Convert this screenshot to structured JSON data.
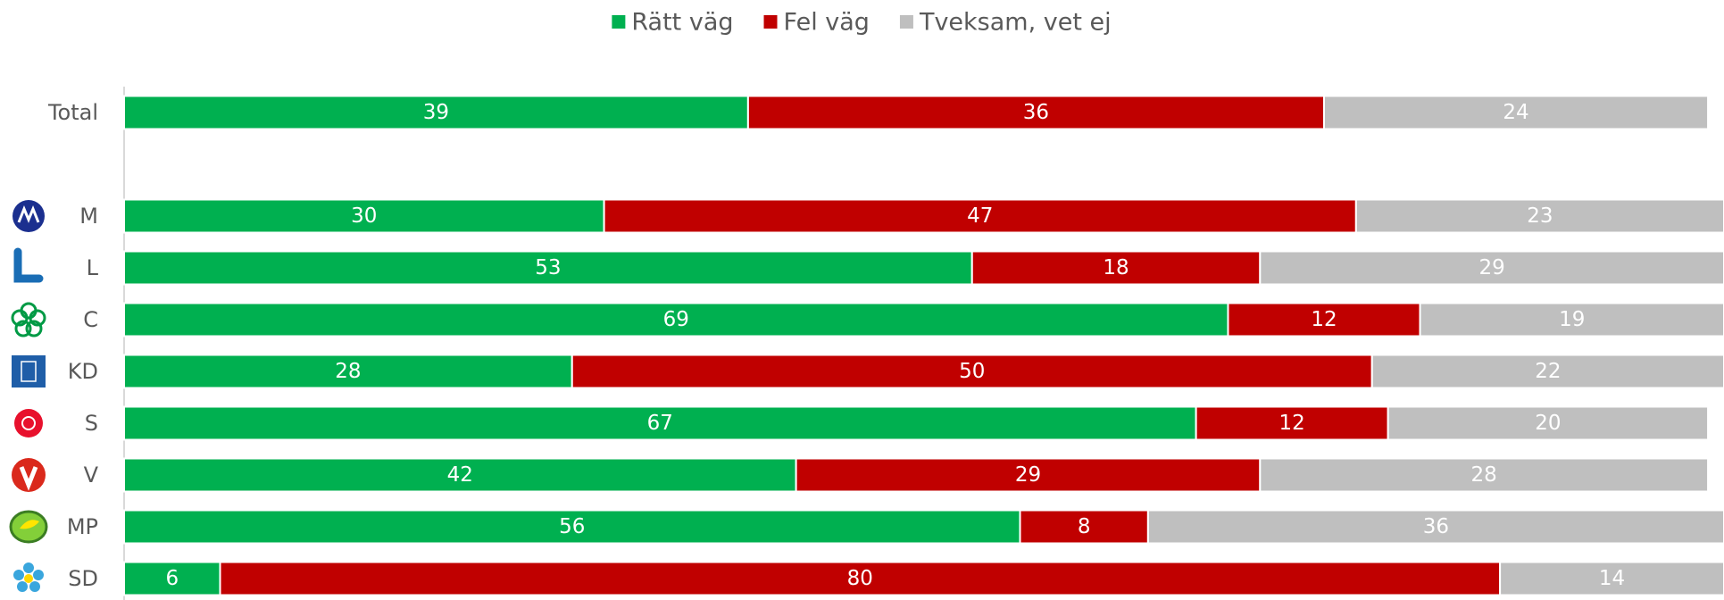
{
  "chart_data": {
    "type": "stacked-bar-horizontal",
    "categories": [
      "Total",
      "M",
      "L",
      "C",
      "KD",
      "S",
      "V",
      "MP",
      "SD"
    ],
    "series": [
      {
        "name": "Rätt väg",
        "color": "#00b050",
        "values": [
          39,
          30,
          53,
          69,
          28,
          67,
          42,
          56,
          6
        ]
      },
      {
        "name": "Fel väg",
        "color": "#c00000",
        "values": [
          36,
          47,
          18,
          12,
          50,
          12,
          29,
          8,
          80
        ]
      },
      {
        "name": "Tveksam, vet ej",
        "color": "#bfbfbf",
        "values": [
          24,
          23,
          29,
          19,
          22,
          20,
          28,
          36,
          14
        ]
      }
    ],
    "xlim": [
      0,
      100
    ],
    "legend": "top"
  }
}
